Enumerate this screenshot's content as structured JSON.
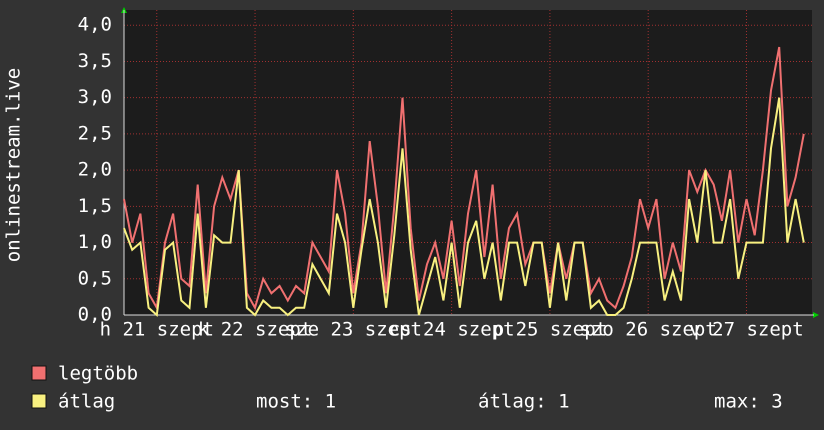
{
  "chart_data": {
    "type": "line",
    "y_label": "onlinestream.live",
    "x": [
      0,
      2,
      4,
      6,
      8,
      10,
      12,
      14,
      16,
      18,
      20,
      22,
      24,
      26,
      28,
      30,
      32,
      34,
      36,
      38,
      40,
      42,
      44,
      46,
      48,
      50,
      52,
      54,
      56,
      58,
      60,
      62,
      64,
      66,
      68,
      70,
      72,
      74,
      76,
      78,
      80,
      82,
      84,
      86,
      88,
      90,
      92,
      94,
      96,
      98,
      100,
      102,
      104,
      106,
      108,
      110,
      112,
      114,
      116,
      118,
      120,
      122,
      124,
      126,
      128,
      130,
      132,
      134,
      136,
      138,
      140,
      142,
      144,
      146,
      148,
      150,
      152,
      154,
      156,
      158,
      160,
      162,
      164,
      166
    ],
    "xlim": [
      0,
      168
    ],
    "xticks": [
      {
        "value": 8,
        "label": "h 21 szept"
      },
      {
        "value": 32,
        "label": "k 22 szept"
      },
      {
        "value": 56,
        "label": "sze 23 szept"
      },
      {
        "value": 80,
        "label": "cs 24 szept"
      },
      {
        "value": 104,
        "label": "p 25 szept"
      },
      {
        "value": 128,
        "label": "szo 26 szept"
      },
      {
        "value": 152,
        "label": "v 27 szept"
      }
    ],
    "ylim": [
      0,
      4.1
    ],
    "yticks": [
      {
        "value": 0,
        "label": "0,0"
      },
      {
        "value": 0.5,
        "label": "0,5"
      },
      {
        "value": 1,
        "label": "1,0"
      },
      {
        "value": 1.5,
        "label": "1,5"
      },
      {
        "value": 2,
        "label": "2,0"
      },
      {
        "value": 2.5,
        "label": "2,5"
      },
      {
        "value": 3,
        "label": "3,0"
      },
      {
        "value": 3.5,
        "label": "3,5"
      },
      {
        "value": 4,
        "label": "4,0"
      }
    ],
    "grid": true,
    "series": [
      {
        "name": "legtöbb",
        "color": "#f07070",
        "values": [
          1.6,
          1.0,
          1.4,
          0.3,
          0.1,
          1.0,
          1.4,
          0.5,
          0.4,
          1.8,
          0.3,
          1.5,
          1.9,
          1.6,
          2.0,
          0.3,
          0.1,
          0.5,
          0.3,
          0.4,
          0.2,
          0.4,
          0.3,
          1.0,
          0.8,
          0.6,
          2.0,
          1.4,
          0.3,
          1.0,
          2.4,
          1.5,
          0.3,
          1.5,
          3.0,
          1.2,
          0.2,
          0.7,
          1.0,
          0.5,
          1.3,
          0.4,
          1.4,
          2.0,
          0.8,
          1.8,
          0.5,
          1.2,
          1.4,
          0.7,
          1.0,
          1.0,
          0.3,
          1.0,
          0.5,
          1.0,
          1.0,
          0.3,
          0.5,
          0.2,
          0.1,
          0.4,
          0.8,
          1.6,
          1.2,
          1.6,
          0.5,
          1.0,
          0.6,
          2.0,
          1.7,
          2.0,
          1.8,
          1.3,
          2.0,
          1.0,
          1.6,
          1.1,
          2.0,
          3.1,
          3.7,
          1.5,
          1.9,
          2.5
        ]
      },
      {
        "name": "átlag",
        "color": "#f8f080",
        "values": [
          1.2,
          0.9,
          1.0,
          0.1,
          0,
          0.9,
          1.0,
          0.2,
          0.1,
          1.4,
          0.1,
          1.1,
          1.0,
          1.0,
          2.0,
          0.1,
          0,
          0.2,
          0.1,
          0.1,
          0,
          0.1,
          0.1,
          0.7,
          0.5,
          0.3,
          1.4,
          1.0,
          0.1,
          0.9,
          1.6,
          1.0,
          0.1,
          1.1,
          2.3,
          0.9,
          0,
          0.4,
          0.8,
          0.2,
          1.0,
          0.1,
          1.0,
          1.3,
          0.5,
          1.0,
          0.2,
          1.0,
          1.0,
          0.4,
          1.0,
          1.0,
          0.1,
          1.0,
          0.2,
          1.0,
          1.0,
          0.1,
          0.2,
          0,
          0,
          0.1,
          0.5,
          1.0,
          1.0,
          1.0,
          0.2,
          0.6,
          0.2,
          1.6,
          1.0,
          2.0,
          1.0,
          1.0,
          1.6,
          0.5,
          1.0,
          1.0,
          1.0,
          2.3,
          3.0,
          1.0,
          1.6,
          1.0
        ]
      }
    ],
    "legend_stats": [
      "most: 1",
      "átlag: 1",
      "max: 3"
    ]
  }
}
